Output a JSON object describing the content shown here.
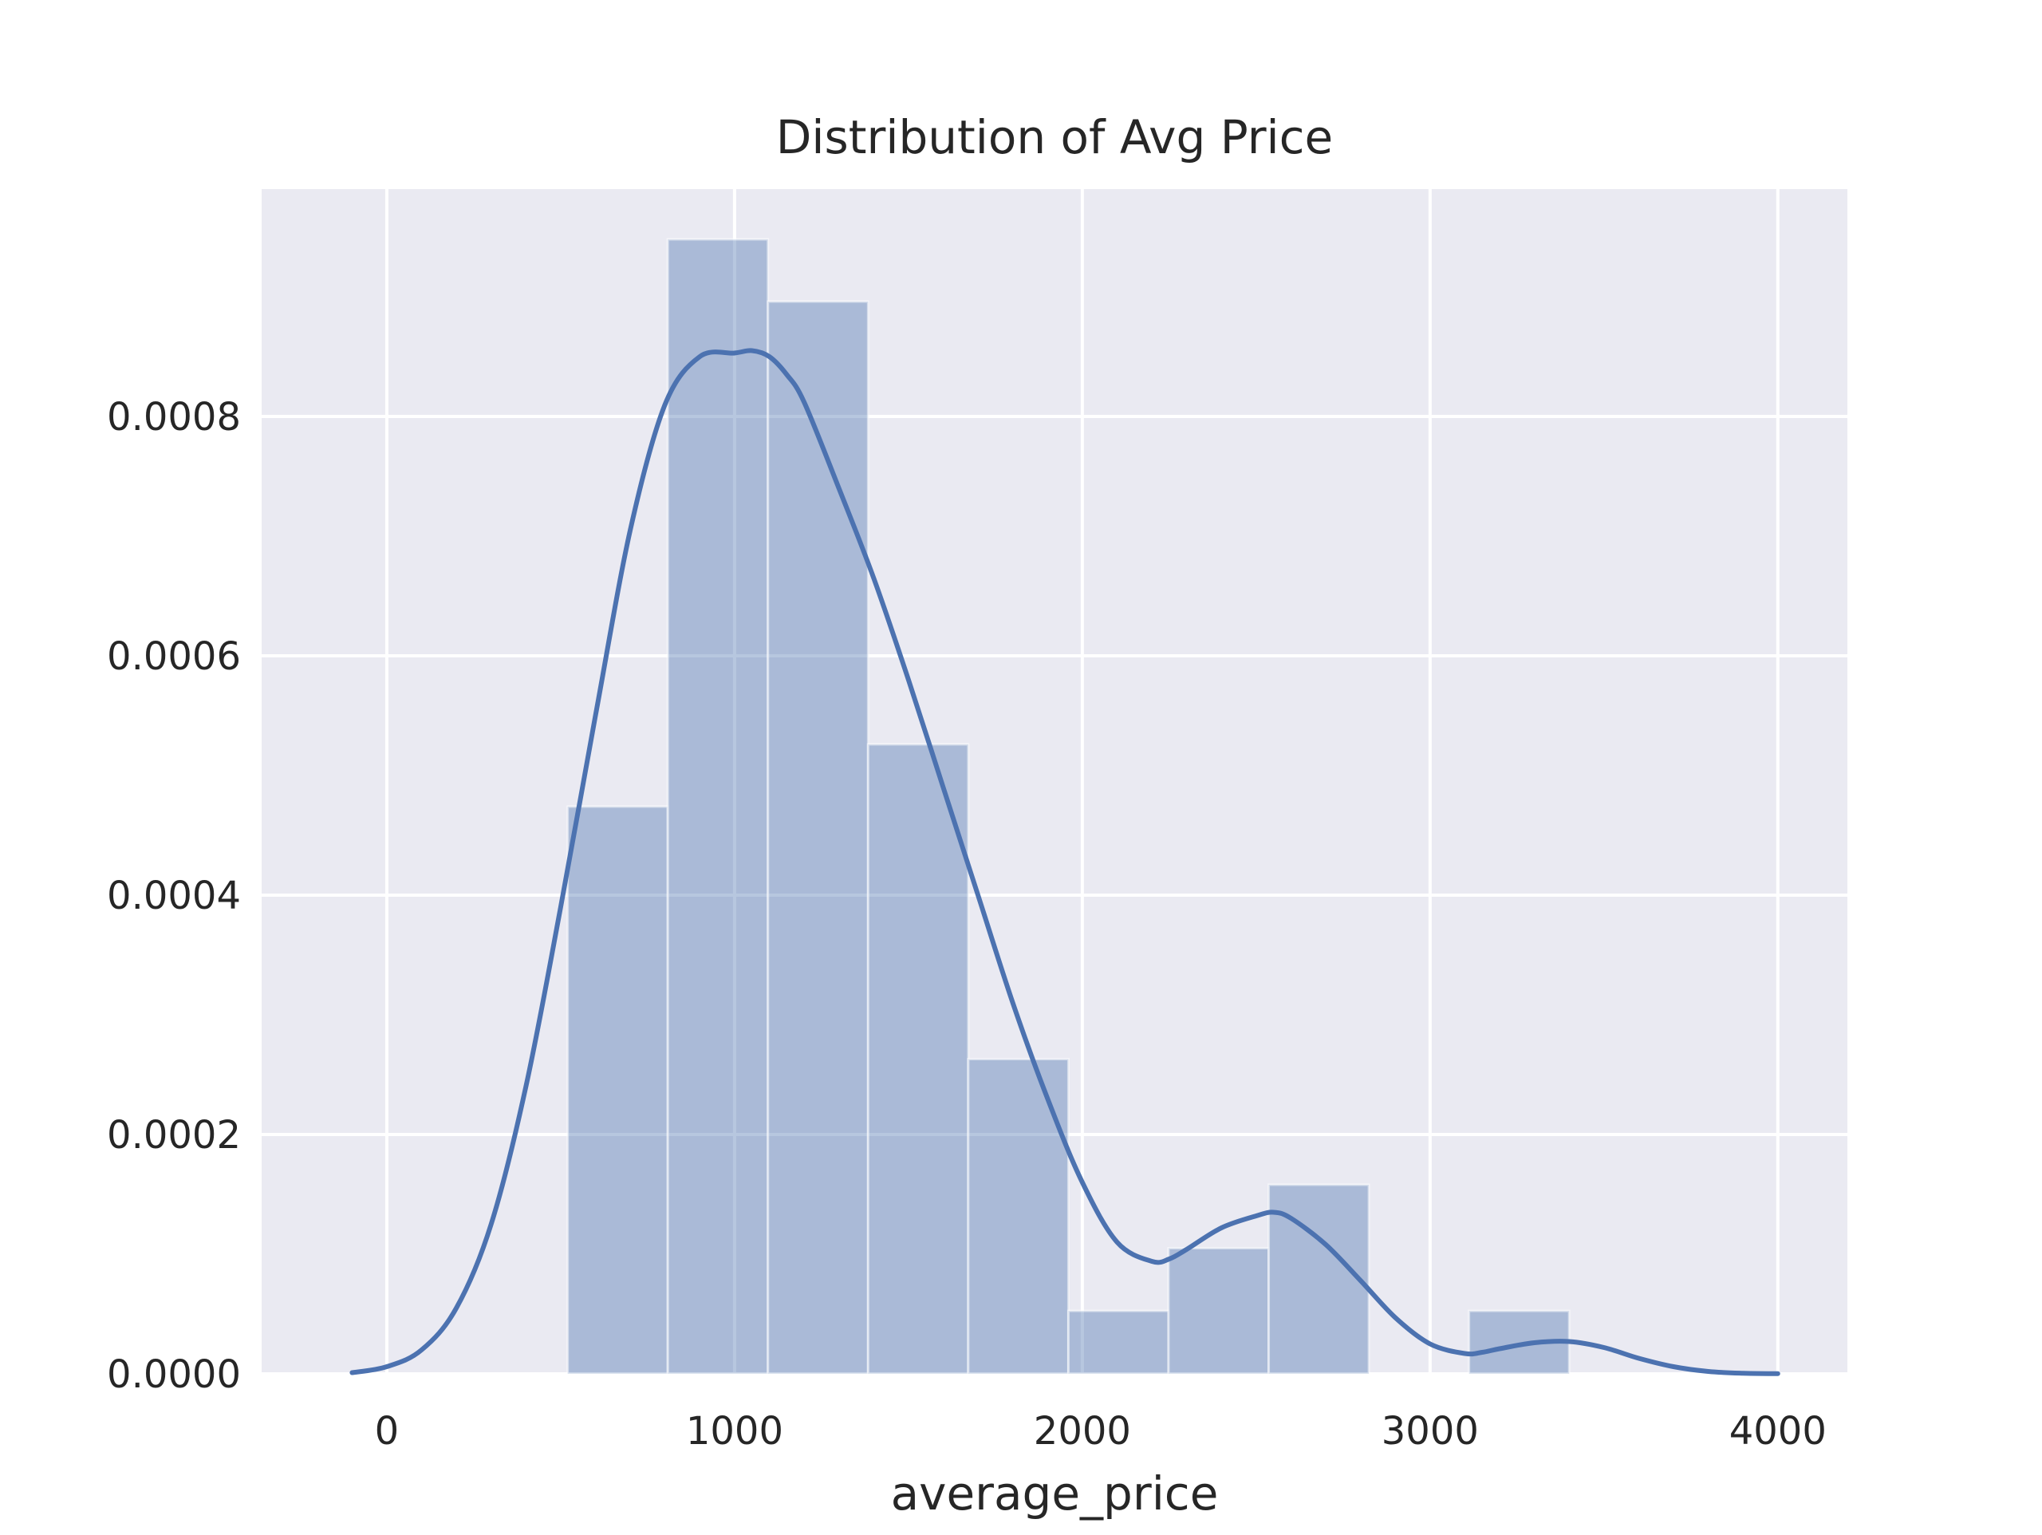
{
  "chart_data": {
    "type": "bar",
    "title": "Distribution of Avg Price",
    "xlabel": "average_price",
    "ylabel": "",
    "xlim": [
      -360,
      4200
    ],
    "ylim": [
      0,
      0.00099
    ],
    "grid": true,
    "x_ticks": [
      {
        "value": 0,
        "label": "0"
      },
      {
        "value": 1000,
        "label": "1000"
      },
      {
        "value": 2000,
        "label": "2000"
      },
      {
        "value": 3000,
        "label": "3000"
      },
      {
        "value": 4000,
        "label": "4000"
      }
    ],
    "y_ticks": [
      {
        "value": 0.0,
        "label": "0.0000"
      },
      {
        "value": 0.0002,
        "label": "0.0002"
      },
      {
        "value": 0.0004,
        "label": "0.0004"
      },
      {
        "value": 0.0006,
        "label": "0.0006"
      },
      {
        "value": 0.0008,
        "label": "0.0008"
      }
    ],
    "histogram": {
      "bins": [
        {
          "x0": 520,
          "x1": 808,
          "density": 0.000474
        },
        {
          "x0": 808,
          "x1": 1096,
          "density": 0.000948
        },
        {
          "x0": 1096,
          "x1": 1384,
          "density": 0.000896
        },
        {
          "x0": 1384,
          "x1": 1672,
          "density": 0.000526
        },
        {
          "x0": 1672,
          "x1": 1960,
          "density": 0.000263
        },
        {
          "x0": 1960,
          "x1": 2248,
          "density": 5.26e-05
        },
        {
          "x0": 2248,
          "x1": 2536,
          "density": 0.000105
        },
        {
          "x0": 2536,
          "x1": 2824,
          "density": 0.000158
        },
        {
          "x0": 2824,
          "x1": 3112,
          "density": 0.0
        },
        {
          "x0": 3112,
          "x1": 3400,
          "density": 5.26e-05
        }
      ],
      "color": "#4c72b0"
    },
    "kde": {
      "color": "#4c72b0",
      "x": [
        -100,
        0,
        100,
        200,
        300,
        400,
        500,
        600,
        700,
        800,
        900,
        1000,
        1050,
        1100,
        1150,
        1200,
        1300,
        1400,
        1500,
        1600,
        1700,
        1800,
        1900,
        2000,
        2100,
        2200,
        2250,
        2300,
        2400,
        2500,
        2550,
        2600,
        2700,
        2800,
        2900,
        3000,
        3100,
        3150,
        3200,
        3300,
        3400,
        3500,
        3600,
        3700,
        3800,
        3900,
        4000
      ],
      "y": [
        1e-06,
        6e-06,
        2e-05,
        5.5e-05,
        0.000125,
        0.00024,
        0.00039,
        0.00055,
        0.000705,
        0.00081,
        0.00085,
        0.000853,
        0.000855,
        0.00085,
        0.000835,
        0.000812,
        0.00074,
        0.000665,
        0.00058,
        0.00049,
        0.0004,
        0.00031,
        0.00023,
        0.00016,
        0.00011,
        9.4e-05,
        9.6e-05,
        0.000104,
        0.000122,
        0.000132,
        0.000135,
        0.00013,
        0.000108,
        7.8e-05,
        4.7e-05,
        2.5e-05,
        1.7e-05,
        1.8e-05,
        2.1e-05,
        2.6e-05,
        2.7e-05,
        2.2e-05,
        1.3e-05,
        6e-06,
        2e-06,
        5e-07,
        1e-07
      ]
    },
    "colors": {
      "plot_background": "#eaeaf2",
      "grid": "#ffffff",
      "text": "#262626"
    }
  }
}
